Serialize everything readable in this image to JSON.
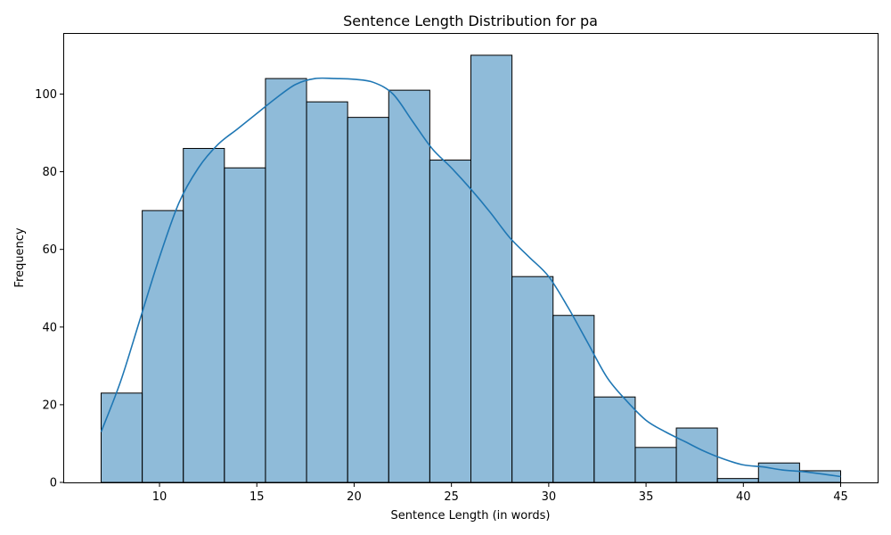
{
  "chart_data": {
    "type": "bar",
    "title": "Sentence Length Distribution for pa",
    "xlabel": "Sentence Length (in words)",
    "ylabel": "Frequency",
    "xlim": [
      5.1,
      46.9
    ],
    "ylim": [
      0,
      115.5
    ],
    "x_ticks": [
      10,
      15,
      20,
      25,
      30,
      35,
      40,
      45
    ],
    "y_ticks": [
      0,
      20,
      40,
      60,
      80,
      100
    ],
    "bins": {
      "start": 7,
      "end": 45,
      "values": [
        23,
        70,
        86,
        81,
        104,
        98,
        94,
        101,
        83,
        110,
        53,
        43,
        22,
        9,
        14,
        1,
        5,
        3
      ]
    },
    "kde": {
      "x": [
        7,
        8,
        9,
        10,
        11,
        12,
        13,
        14,
        15,
        16,
        17,
        18,
        19,
        20,
        21,
        22,
        23,
        24,
        25,
        26,
        27,
        28,
        29,
        30,
        31,
        32,
        33,
        34,
        35,
        36,
        37,
        38,
        39,
        40,
        41,
        42,
        43,
        44,
        45
      ],
      "y": [
        13,
        26,
        42,
        58,
        72,
        81,
        87,
        91,
        95,
        99,
        102.5,
        104,
        104,
        103.8,
        103,
        100,
        93,
        86,
        81,
        75.5,
        69.5,
        63,
        58,
        53,
        45,
        36,
        27,
        21,
        16,
        13,
        10.5,
        8,
        6,
        4.5,
        4,
        3.2,
        2.8,
        2.2,
        1.5
      ]
    },
    "colors": {
      "bar": "#1f77b4",
      "edge": "#000000",
      "kde": "#1f77b4"
    },
    "grid": false,
    "legend": "none"
  }
}
